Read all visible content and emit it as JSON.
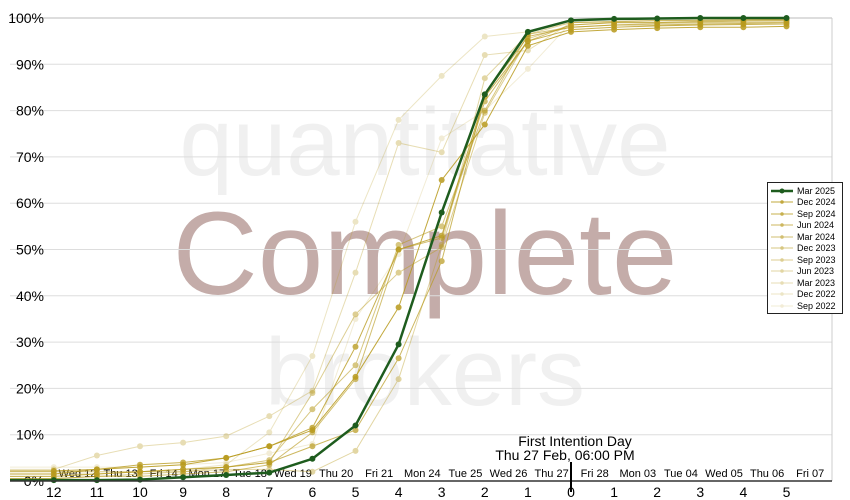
{
  "watermark": {
    "line1": "quantitative",
    "line2": "Complete",
    "line3": "brokers"
  },
  "annotation": {
    "line1": "First Intention Day",
    "line2": "Thu 27 Feb, 06:00 PM"
  },
  "colors": {
    "current": "#1e5c1e",
    "past": "#b89a1c",
    "watermark_main": "#c4aca9",
    "watermark_sub": "#f0f0f0"
  },
  "chart_data": {
    "type": "line",
    "y_tick_labels": [
      "0%",
      "10%",
      "20%",
      "30%",
      "40%",
      "50%",
      "60%",
      "70%",
      "80%",
      "90%",
      "100%"
    ],
    "ylim": [
      0,
      100
    ],
    "y_unit": "%",
    "x": [
      -12,
      -11,
      -10,
      -9,
      -8,
      -7,
      -6,
      -5,
      -4,
      -3,
      -2,
      -1,
      0,
      1,
      2,
      3,
      4,
      5
    ],
    "x_tick_labels": [
      "12",
      "11",
      "10",
      "9",
      "8",
      "7",
      "6",
      "5",
      "4",
      "3",
      "2",
      "1",
      "0",
      "1",
      "2",
      "3",
      "4",
      "5"
    ],
    "date_labels": [
      "Wed 12",
      "Thu 13",
      "Fri 14",
      "Mon 17",
      "Tue 18",
      "Wed 19",
      "Thu 20",
      "Fri 21",
      "Mon 24",
      "Tue 25",
      "Wed 26",
      "Thu 27",
      "Fri 28",
      "Mon 03",
      "Tue 04",
      "Wed 05",
      "Thu 06",
      "Fri 07"
    ],
    "grid": true,
    "legend_position": "right",
    "series": [
      {
        "name": "Mar 2025",
        "values": [
          0.2,
          0.2,
          0.3,
          0.8,
          1.3,
          1.8,
          4.8,
          12,
          29.5,
          58,
          83.5,
          97,
          99.5,
          99.8,
          99.9,
          100,
          100,
          100
        ]
      },
      {
        "name": "Dec 2024",
        "values": [
          2.2,
          2.5,
          3,
          3.5,
          5,
          7.5,
          11,
          22.5,
          37.5,
          65,
          77,
          94,
          97,
          97.5,
          97.8,
          98,
          98,
          98.2
        ]
      },
      {
        "name": "Sep 2024",
        "values": [
          1.5,
          2.5,
          3.5,
          4,
          5,
          7.5,
          11.5,
          29,
          50,
          53,
          83,
          95,
          97.5,
          98,
          98.3,
          98.5,
          98.6,
          98.7
        ]
      },
      {
        "name": "Jun 2024",
        "values": [
          1,
          1.5,
          2,
          2.5,
          3,
          4,
          7.5,
          11,
          26.5,
          47.5,
          83.5,
          96,
          98,
          98.5,
          98.5,
          98.7,
          98.8,
          99
        ]
      },
      {
        "name": "Mar 2024",
        "values": [
          0.5,
          1,
          1,
          1.5,
          2,
          3.5,
          10.5,
          22,
          50,
          52.5,
          82,
          95,
          98.5,
          99,
          99,
          99.2,
          99.3,
          99.5
        ]
      },
      {
        "name": "Dec 2023",
        "values": [
          2,
          2,
          2,
          2.5,
          3,
          4.5,
          15.5,
          25,
          51,
          55,
          80,
          96.5,
          98,
          98.5,
          98.8,
          99,
          99,
          99.2
        ]
      },
      {
        "name": "Sep 2023",
        "values": [
          0.5,
          1,
          1.5,
          2,
          3,
          4,
          19,
          36,
          45,
          50.5,
          79.5,
          95.5,
          98.5,
          99,
          99,
          99.3,
          99.5,
          99.6
        ]
      },
      {
        "name": "Jun 2023",
        "values": [
          1.5,
          1.5,
          2,
          2,
          2.5,
          2.5,
          2,
          6.5,
          22,
          51,
          87,
          96.5,
          99,
          99.2,
          99.4,
          99.5,
          99.6,
          99.7
        ]
      },
      {
        "name": "Mar 2023",
        "values": [
          2.5,
          5.5,
          7.5,
          8.3,
          9.7,
          14,
          19.5,
          45,
          73,
          71,
          92,
          93,
          99,
          99.3,
          99.5,
          99.6,
          99.7,
          99.8
        ]
      },
      {
        "name": "Dec 2022",
        "values": [
          1,
          1.5,
          2,
          2.5,
          3.5,
          10.5,
          27,
          56,
          78,
          87.5,
          96,
          97,
          99,
          99.2,
          99.4,
          99.5,
          99.6,
          99.7
        ]
      },
      {
        "name": "Sep 2022",
        "values": [
          3,
          3,
          3,
          3.5,
          4,
          6,
          8,
          35,
          49,
          74,
          80,
          89,
          99,
          99.2,
          99.4,
          99.5,
          99.6,
          99.7
        ]
      }
    ]
  }
}
